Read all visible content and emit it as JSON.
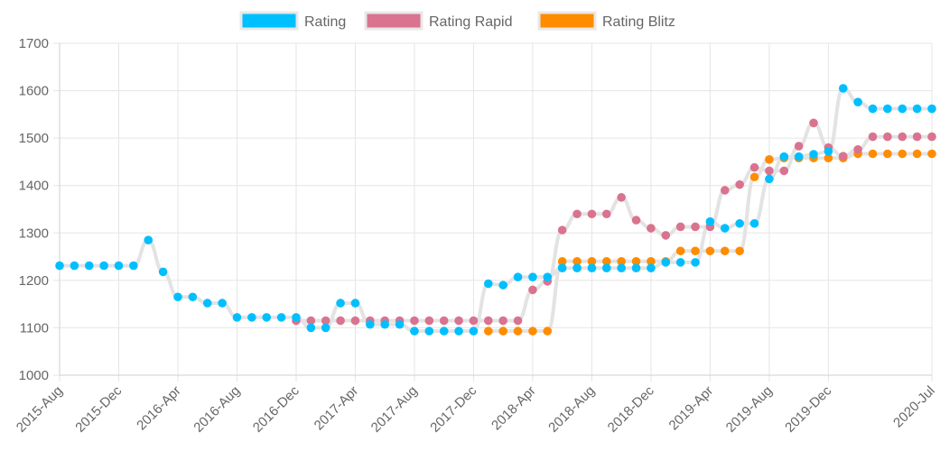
{
  "chart_data": {
    "type": "line",
    "title": "",
    "xlabel": "",
    "ylabel": "",
    "ylim": [
      1000,
      1700
    ],
    "yticks": [
      1000,
      1100,
      1200,
      1300,
      1400,
      1500,
      1600,
      1700
    ],
    "xticks": [
      "2015-Aug",
      "2015-Dec",
      "2016-Apr",
      "2016-Aug",
      "2016-Dec",
      "2017-Apr",
      "2017-Aug",
      "2017-Dec",
      "2018-Apr",
      "2018-Aug",
      "2018-Dec",
      "2019-Apr",
      "2019-Aug",
      "2019-Dec",
      "2020-Jul"
    ],
    "x": [
      "2015-Aug",
      "2015-Sep",
      "2015-Oct",
      "2015-Nov",
      "2015-Dec",
      "2016-Jan",
      "2016-Feb",
      "2016-Mar",
      "2016-Apr",
      "2016-May",
      "2016-Jun",
      "2016-Jul",
      "2016-Aug",
      "2016-Sep",
      "2016-Oct",
      "2016-Nov",
      "2016-Dec",
      "2017-Jan",
      "2017-Feb",
      "2017-Mar",
      "2017-Apr",
      "2017-May",
      "2017-Jun",
      "2017-Jul",
      "2017-Aug",
      "2017-Sep",
      "2017-Oct",
      "2017-Nov",
      "2017-Dec",
      "2018-Jan",
      "2018-Feb",
      "2018-Mar",
      "2018-Apr",
      "2018-May",
      "2018-Jun",
      "2018-Jul",
      "2018-Aug",
      "2018-Sep",
      "2018-Oct",
      "2018-Nov",
      "2018-Dec",
      "2019-Jan",
      "2019-Feb",
      "2019-Mar",
      "2019-Apr",
      "2019-May",
      "2019-Jun",
      "2019-Jul",
      "2019-Aug",
      "2019-Sep",
      "2019-Oct",
      "2019-Nov",
      "2019-Dec",
      "2020-Jan",
      "2020-Feb",
      "2020-Mar",
      "2020-Apr",
      "2020-May",
      "2020-Jun",
      "2020-Jul"
    ],
    "legend_position": "top",
    "grid": true,
    "line_color": "#e3e3e3",
    "series": [
      {
        "name": "Rating",
        "color": "#00bfff",
        "values": [
          1231,
          1231,
          1231,
          1231,
          1231,
          1231,
          1285,
          1218,
          1165,
          1165,
          1152,
          1152,
          1122,
          1122,
          1122,
          1122,
          1122,
          1100,
          1100,
          1152,
          1152,
          1107,
          1107,
          1107,
          1093,
          1093,
          1093,
          1093,
          1093,
          1193,
          1190,
          1207,
          1207,
          1207,
          1226,
          1226,
          1226,
          1226,
          1226,
          1226,
          1226,
          1238,
          1238,
          1238,
          1324,
          1310,
          1320,
          1320,
          1414,
          1461,
          1461,
          1466,
          1472,
          1605,
          1576,
          1562,
          1562,
          1562,
          1562,
          1562
        ]
      },
      {
        "name": "Rating Rapid",
        "color": "#d9738f",
        "values": [
          null,
          null,
          null,
          null,
          null,
          null,
          null,
          null,
          null,
          null,
          null,
          null,
          null,
          null,
          null,
          null,
          1115,
          1115,
          1115,
          1115,
          1115,
          1115,
          1115,
          1115,
          1115,
          1115,
          1115,
          1115,
          1115,
          1115,
          1115,
          1115,
          1180,
          1198,
          1306,
          1340,
          1340,
          1340,
          1375,
          1327,
          1310,
          1295,
          1313,
          1313,
          1313,
          1390,
          1402,
          1438,
          1431,
          1431,
          1483,
          1532,
          1480,
          1462,
          1476,
          1503,
          1503,
          1503,
          1503,
          1503
        ]
      },
      {
        "name": "Rating Blitz",
        "color": "#ff8c00",
        "values": [
          null,
          null,
          null,
          null,
          null,
          null,
          null,
          null,
          null,
          null,
          null,
          null,
          null,
          null,
          null,
          null,
          null,
          null,
          null,
          null,
          null,
          null,
          null,
          null,
          null,
          null,
          null,
          null,
          null,
          1093,
          1093,
          1093,
          1093,
          1093,
          1240,
          1240,
          1240,
          1240,
          1240,
          1240,
          1240,
          1240,
          1262,
          1262,
          1262,
          1262,
          1262,
          1418,
          1455,
          1458,
          1458,
          1458,
          1458,
          1458,
          1467,
          1467,
          1467,
          1467,
          1467,
          1467
        ]
      }
    ]
  }
}
